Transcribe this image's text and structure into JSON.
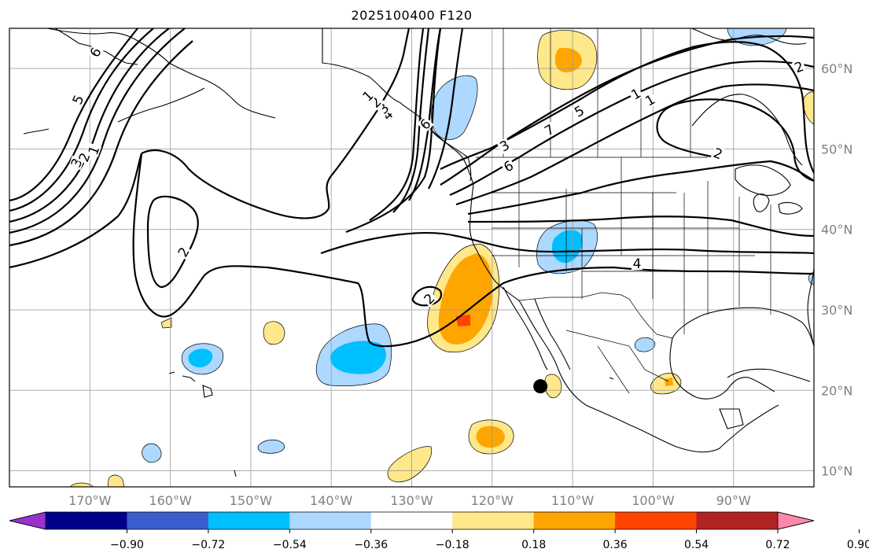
{
  "title": "2025100400 F120",
  "map": {
    "projection": "plate-carree",
    "extent": {
      "lon_min": -180,
      "lon_max": -80,
      "lat_min": 8,
      "lat_max": 65
    },
    "lon_labels": [
      "170°W",
      "160°W",
      "150°W",
      "140°W",
      "130°W",
      "120°W",
      "110°W",
      "100°W",
      "90°W"
    ],
    "lat_labels": [
      "60°N",
      "50°N",
      "40°N",
      "30°N",
      "20°N",
      "10°N"
    ],
    "gridlines": true,
    "coastlines": true,
    "state_borders": true,
    "marker": {
      "lon": -114,
      "lat": 20.5,
      "color": "#000000"
    },
    "contour_labels": [
      "6",
      "5",
      "3",
      "2",
      "1",
      "2",
      "2",
      "4",
      "6",
      "5",
      "3",
      "2",
      "1",
      "1",
      "2",
      "4",
      "6",
      "7",
      "3",
      "2",
      "1"
    ]
  },
  "colorbar": {
    "ticks": [
      "−0.90",
      "−0.72",
      "−0.54",
      "−0.36",
      "−0.18",
      "0.18",
      "0.36",
      "0.54",
      "0.72",
      "0.90"
    ],
    "colors": [
      "#9932cc",
      "#00008b",
      "#3a5fcd",
      "#00bfff",
      "#add8ff",
      "#ffffff",
      "#ffe88a",
      "#ffa500",
      "#ff4500",
      "#b22222",
      "#ff88aa"
    ],
    "extend": "both"
  },
  "colors": {
    "neg_light": "#add8ff",
    "neg_mid": "#00bfff",
    "pos_light": "#ffe88a",
    "pos_mid": "#ffa500",
    "pos_high": "#ff4500"
  }
}
